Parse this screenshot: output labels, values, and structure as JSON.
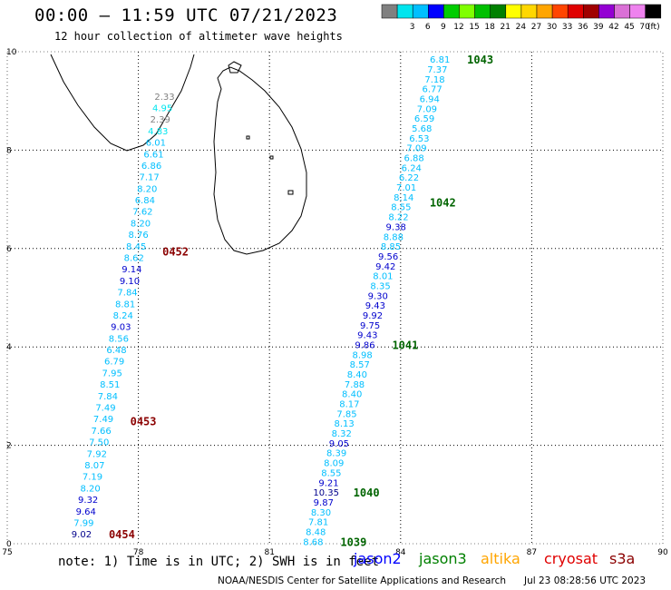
{
  "header": {
    "title": "00:00 – 11:59 UTC 07/21/2023",
    "subtitle": "12 hour collection of altimeter wave heights"
  },
  "colorbar": {
    "unit_label": "(ft)",
    "bins": [
      {
        "label": "",
        "color": "#808080"
      },
      {
        "label": "3",
        "color": "#00e5ee"
      },
      {
        "label": "6",
        "color": "#00bfff"
      },
      {
        "label": "9",
        "color": "#0000ff"
      },
      {
        "label": "12",
        "color": "#00cd00"
      },
      {
        "label": "15",
        "color": "#7fff00"
      },
      {
        "label": "18",
        "color": "#00c000"
      },
      {
        "label": "21",
        "color": "#008000"
      },
      {
        "label": "24",
        "color": "#ffff00"
      },
      {
        "label": "27",
        "color": "#ffd700"
      },
      {
        "label": "30",
        "color": "#ffa500"
      },
      {
        "label": "33",
        "color": "#ff4500"
      },
      {
        "label": "36",
        "color": "#e00000"
      },
      {
        "label": "39",
        "color": "#a00000"
      },
      {
        "label": "42",
        "color": "#9400d3"
      },
      {
        "label": "45",
        "color": "#da70d6"
      },
      {
        "label": "70",
        "color": "#ee82ee"
      },
      {
        "label": "",
        "color": "#000000"
      }
    ]
  },
  "axes": {
    "x_ticks": [
      "75",
      "78",
      "81",
      "84",
      "87",
      "90"
    ],
    "y_ticks": [
      "0",
      "2",
      "4",
      "6",
      "8",
      "10"
    ],
    "xlim": [
      75,
      90
    ],
    "ylim": [
      0,
      10
    ]
  },
  "tracks": [
    {
      "name": "west-track",
      "values": [
        "9.02",
        "7.99",
        "9.64",
        "9.32",
        "8.20",
        "7.19",
        "8.07",
        "7.92",
        "7.50",
        "7.66",
        "7.49",
        "7.49",
        "7.84",
        "8.51",
        "7.95",
        "6.79",
        "6.48",
        "8.56",
        "9.03",
        "8.24",
        "8.81",
        "7.84",
        "9.10",
        "9.14",
        "8.62",
        "8.45",
        "8.76",
        "8.20",
        "7.62",
        "6.84",
        "8.20",
        "7.17",
        "6.86",
        "6.61",
        "6.01",
        "4.83",
        "2.39",
        "4.95",
        "2.33"
      ],
      "colors": [
        "#00008b",
        "#00bfff",
        "#0000cd",
        "#0000cd",
        "#00bfff",
        "#00bfff",
        "#00bfff",
        "#00bfff",
        "#00bfff",
        "#00bfff",
        "#00bfff",
        "#00bfff",
        "#00bfff",
        "#00bfff",
        "#00bfff",
        "#00bfff",
        "#00bfff",
        "#00bfff",
        "#0000cd",
        "#00bfff",
        "#00bfff",
        "#00bfff",
        "#0000cd",
        "#0000cd",
        "#00bfff",
        "#00bfff",
        "#00bfff",
        "#00bfff",
        "#00bfff",
        "#00bfff",
        "#00bfff",
        "#00bfff",
        "#00bfff",
        "#00bfff",
        "#00bfff",
        "#00e5ee",
        "#808080",
        "#00e5ee",
        "#808080"
      ],
      "y_start": 0.2,
      "y_end": 9.1,
      "lon_start": 76.7,
      "lon_end": 78.6,
      "time_labels": [
        {
          "text": "0454",
          "lat": 0.2
        },
        {
          "text": "0453",
          "lat": 2.5
        },
        {
          "text": "0452",
          "lat": 5.95
        }
      ],
      "time_color": "#8b0000"
    },
    {
      "name": "east-track",
      "values": [
        "8.68",
        "8.48",
        "7.81",
        "8.30",
        "9.87",
        "10.35",
        "9.21",
        "8.55",
        "8.09",
        "8.39",
        "9.05",
        "8.32",
        "8.13",
        "7.85",
        "8.17",
        "8.40",
        "7.88",
        "8.40",
        "8.57",
        "8.98",
        "9.86",
        "9.43",
        "9.75",
        "9.92",
        "9.43",
        "9.30",
        "8.35",
        "8.01",
        "9.42",
        "9.56",
        "8.85",
        "8.88",
        "9.38",
        "8.22",
        "8.55",
        "8.14",
        "7.01",
        "6.22",
        "6.24",
        "6.88",
        "7.09",
        "6.53",
        "5.68",
        "6.59",
        "7.09",
        "6.94",
        "6.77",
        "7.18",
        "7.37",
        "6.81"
      ],
      "colors": [
        "#00bfff",
        "#00bfff",
        "#00bfff",
        "#00bfff",
        "#0000cd",
        "#00008b",
        "#0000cd",
        "#00bfff",
        "#00bfff",
        "#00bfff",
        "#0000cd",
        "#00bfff",
        "#00bfff",
        "#00bfff",
        "#00bfff",
        "#00bfff",
        "#00bfff",
        "#00bfff",
        "#00bfff",
        "#00bfff",
        "#0000cd",
        "#0000cd",
        "#0000cd",
        "#0000cd",
        "#0000cd",
        "#0000cd",
        "#00bfff",
        "#00bfff",
        "#0000cd",
        "#0000cd",
        "#00bfff",
        "#00bfff",
        "#0000cd",
        "#00bfff",
        "#00bfff",
        "#00bfff",
        "#00bfff",
        "#00bfff",
        "#00bfff",
        "#00bfff",
        "#00bfff",
        "#00bfff",
        "#00bfff",
        "#00bfff",
        "#00bfff",
        "#00bfff",
        "#00bfff",
        "#00bfff",
        "#00bfff",
        "#00bfff"
      ],
      "y_start": 0.05,
      "y_end": 9.85,
      "lon_start": 82.0,
      "lon_end": 84.9,
      "time_labels": [
        {
          "text": "1039",
          "lat": 0.05
        },
        {
          "text": "1040",
          "lat": 1.05
        },
        {
          "text": "1041",
          "lat": 4.05
        },
        {
          "text": "1042",
          "lat": 6.95
        },
        {
          "text": "1043",
          "lat": 9.85
        }
      ],
      "time_color": "#006400"
    }
  ],
  "legend": {
    "note": "note: 1) Time is in UTC; 2) SWH is in feet",
    "satellites": [
      {
        "label": "jason2",
        "color": "#0000ff"
      },
      {
        "label": "jason3",
        "color": "#008000"
      },
      {
        "label": "altika",
        "color": "#ffa500"
      },
      {
        "label": "cryosat",
        "color": "#e00000"
      },
      {
        "label": "s3a",
        "color": "#8b0000"
      }
    ]
  },
  "footer": {
    "credit": "NOAA/NESDIS Center for Satellite Applications and Research",
    "timestamp": "Jul 23 08:28:56 UTC 2023"
  }
}
